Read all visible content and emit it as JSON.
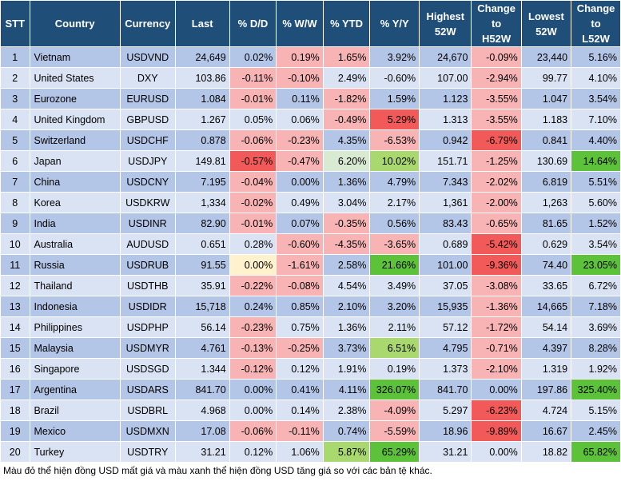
{
  "chart_data": {
    "type": "table",
    "columns": [
      "STT",
      "Country",
      "Currency",
      "Last",
      "% D/D",
      "% W/W",
      "% YTD",
      "% Y/Y",
      "Highest 52W",
      "Change to H52W",
      "Lowest 52W",
      "Change to L52W"
    ],
    "header_lines": [
      [
        "STT"
      ],
      [
        "Country"
      ],
      [
        "Currency"
      ],
      [
        "Last"
      ],
      [
        "% D/D"
      ],
      [
        "% W/W"
      ],
      [
        "% YTD"
      ],
      [
        "% Y/Y"
      ],
      [
        "Highest",
        "52W"
      ],
      [
        "Change",
        "to",
        "H52W"
      ],
      [
        "Lowest",
        "52W"
      ],
      [
        "Change",
        "to",
        "L52W"
      ]
    ],
    "rows": [
      [
        "1",
        "Vietnam",
        "USDVND",
        "24,649",
        "0.02%",
        "0.19%",
        "1.65%",
        "3.92%",
        "24,670",
        "-0.09%",
        "23,440",
        "5.16%"
      ],
      [
        "2",
        "United States",
        "DXY",
        "103.86",
        "-0.11%",
        "-0.10%",
        "2.49%",
        "-0.60%",
        "107.00",
        "-2.94%",
        "99.77",
        "4.10%"
      ],
      [
        "3",
        "Eurozone",
        "EURUSD",
        "1.084",
        "-0.01%",
        "0.11%",
        "-1.82%",
        "1.59%",
        "1.123",
        "-3.55%",
        "1.047",
        "3.54%"
      ],
      [
        "4",
        "United Kingdom",
        "GBPUSD",
        "1.267",
        "0.05%",
        "0.06%",
        "-0.49%",
        "5.29%",
        "1.313",
        "-3.55%",
        "1.183",
        "7.10%"
      ],
      [
        "5",
        "Switzerland",
        "USDCHF",
        "0.878",
        "-0.06%",
        "-0.23%",
        "4.35%",
        "-6.53%",
        "0.942",
        "-6.79%",
        "0.841",
        "4.40%"
      ],
      [
        "6",
        "Japan",
        "USDJPY",
        "149.81",
        "-0.57%",
        "-0.47%",
        "6.20%",
        "10.02%",
        "151.71",
        "-1.25%",
        "130.69",
        "14.64%"
      ],
      [
        "7",
        "China",
        "USDCNY",
        "7.195",
        "-0.04%",
        "0.00%",
        "1.36%",
        "4.79%",
        "7.343",
        "-2.02%",
        "6.819",
        "5.51%"
      ],
      [
        "8",
        "Korea",
        "USDKRW",
        "1,334",
        "-0.02%",
        "0.49%",
        "3.04%",
        "2.17%",
        "1,361",
        "-2.00%",
        "1,263",
        "5.60%"
      ],
      [
        "9",
        "India",
        "USDINR",
        "82.90",
        "-0.01%",
        "0.07%",
        "-0.35%",
        "0.56%",
        "83.43",
        "-0.65%",
        "81.65",
        "1.52%"
      ],
      [
        "10",
        "Australia",
        "AUDUSD",
        "0.651",
        "0.28%",
        "-0.60%",
        "-4.35%",
        "-3.65%",
        "0.689",
        "-5.42%",
        "0.629",
        "3.54%"
      ],
      [
        "11",
        "Russia",
        "USDRUB",
        "91.55",
        "0.00%",
        "-1.61%",
        "2.58%",
        "21.66%",
        "101.00",
        "-9.36%",
        "74.40",
        "23.05%"
      ],
      [
        "12",
        "Thailand",
        "USDTHB",
        "35.91",
        "-0.22%",
        "-0.08%",
        "4.54%",
        "3.49%",
        "37.05",
        "-3.08%",
        "33.65",
        "6.72%"
      ],
      [
        "13",
        "Indonesia",
        "USDIDR",
        "15,718",
        "0.24%",
        "0.85%",
        "2.10%",
        "3.20%",
        "15,935",
        "-1.36%",
        "14,665",
        "7.18%"
      ],
      [
        "14",
        "Philippines",
        "USDPHP",
        "56.14",
        "-0.23%",
        "0.75%",
        "1.36%",
        "2.11%",
        "57.12",
        "-1.72%",
        "54.14",
        "3.69%"
      ],
      [
        "15",
        "Malaysia",
        "USDMYR",
        "4.761",
        "-0.13%",
        "-0.25%",
        "3.73%",
        "6.51%",
        "4.795",
        "-0.71%",
        "4.397",
        "8.28%"
      ],
      [
        "16",
        "Singapore",
        "USDSGD",
        "1.344",
        "-0.12%",
        "0.12%",
        "1.91%",
        "0.19%",
        "1.373",
        "-2.10%",
        "1.319",
        "1.92%"
      ],
      [
        "17",
        "Argentina",
        "USDARS",
        "841.70",
        "0.00%",
        "0.41%",
        "4.11%",
        "326.07%",
        "841.70",
        "0.00%",
        "197.86",
        "325.40%"
      ],
      [
        "18",
        "Brazil",
        "USDBRL",
        "4.968",
        "0.00%",
        "0.14%",
        "2.38%",
        "-4.09%",
        "5.297",
        "-6.23%",
        "4.724",
        "5.15%"
      ],
      [
        "19",
        "Mexico",
        "USDMXN",
        "17.08",
        "-0.06%",
        "-0.11%",
        "0.74%",
        "-5.59%",
        "18.96",
        "-9.89%",
        "16.67",
        "2.45%"
      ],
      [
        "20",
        "Turkey",
        "USDTRY",
        "31.21",
        "0.12%",
        "1.06%",
        "5.87%",
        "65.29%",
        "31.21",
        "0.00%",
        "18.82",
        "65.82%"
      ]
    ],
    "cell_colors": {
      "1,5": "pk",
      "1,6": "pk",
      "1,9": "pk",
      "2,4": "pk",
      "2,5": "pk",
      "2,9": "pk",
      "3,4": "pk",
      "3,6": "pk",
      "3,9": "pk",
      "4,6": "pk",
      "4,7": "rd",
      "4,9": "pk",
      "5,4": "pk",
      "5,5": "pk",
      "5,7": "pk",
      "5,9": "rd",
      "6,4": "rd",
      "6,5": "pk",
      "6,6": "g",
      "6,7": "lg",
      "6,9": "pk",
      "6,11": "gr",
      "7,4": "pk",
      "7,9": "pk",
      "8,4": "pk",
      "8,9": "pk",
      "9,4": "pk",
      "9,6": "pk",
      "9,9": "pk",
      "10,5": "pk",
      "10,6": "pk",
      "10,7": "pk",
      "10,9": "rd",
      "11,4": "yl",
      "11,5": "pk",
      "11,7": "gr",
      "11,9": "rd",
      "11,11": "gr",
      "12,4": "pk",
      "12,5": "pk",
      "12,9": "pk",
      "13,9": "pk",
      "14,4": "pk",
      "14,9": "pk",
      "15,4": "pk",
      "15,5": "pk",
      "15,7": "lg",
      "15,9": "pk",
      "16,4": "pk",
      "16,9": "pk",
      "17,7": "gr",
      "17,11": "gr",
      "18,7": "pk",
      "18,9": "rd",
      "19,4": "pk",
      "19,5": "pk",
      "19,7": "pk",
      "19,9": "rd",
      "20,6": "lg",
      "20,7": "gr",
      "20,11": "gr"
    }
  },
  "footnote": "Màu đỏ thể hiện đồng USD mất giá và màu xanh thể hiện đồng USD tăng giá so với các bản tệ khác."
}
